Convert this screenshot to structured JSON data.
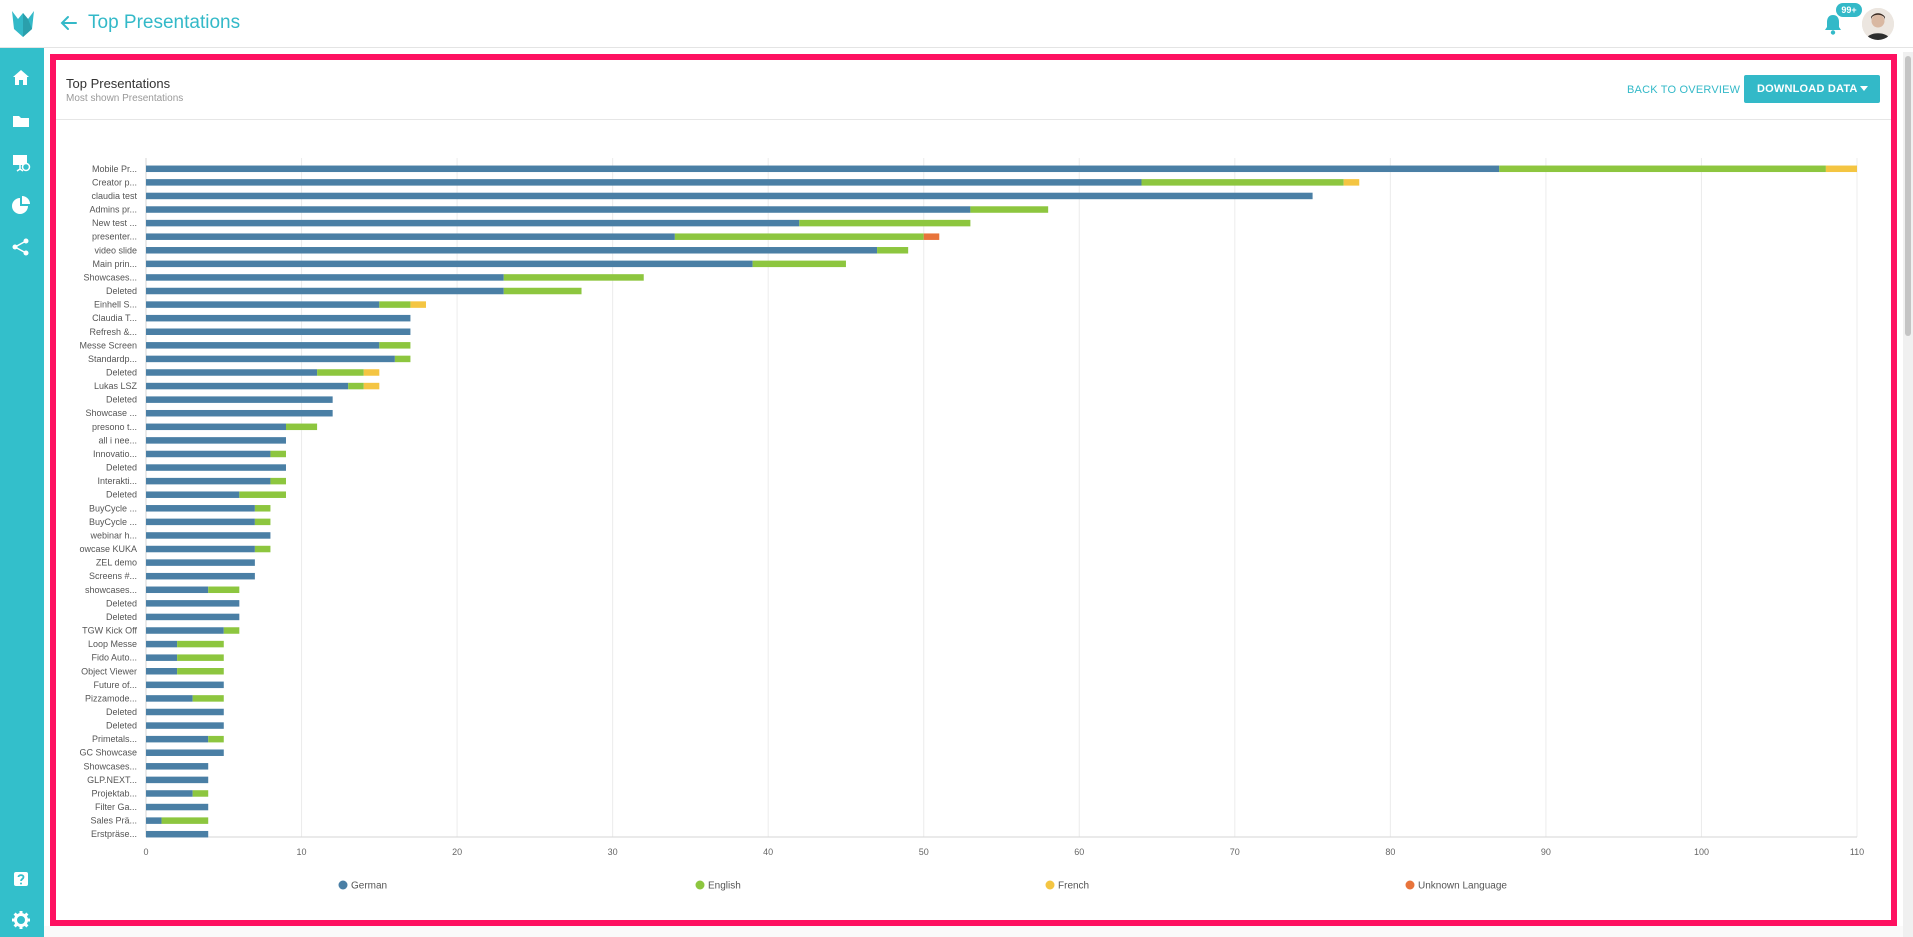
{
  "header": {
    "title": "Top Presentations",
    "notification_count": "99+"
  },
  "sidebar": {
    "items": [
      "home-icon",
      "folder-icon",
      "presentation-icon",
      "pie-chart-icon",
      "share-icon",
      "help-icon",
      "gear-icon"
    ]
  },
  "card": {
    "title": "Top Presentations",
    "subtitle": "Most shown Presentations",
    "back_label": "BACK TO OVERVIEW",
    "download_label": "DOWNLOAD DATA"
  },
  "colors": {
    "accent": "#33b9c8",
    "sidebar": "#33bfcb",
    "highlight": "#fe1161"
  },
  "chart_data": {
    "type": "bar",
    "orientation": "horizontal",
    "stacked": true,
    "xlim": [
      0,
      110
    ],
    "xticks": [
      0,
      10,
      20,
      30,
      40,
      50,
      60,
      70,
      80,
      90,
      100,
      110
    ],
    "grid": true,
    "legend_position": "bottom",
    "categories": [
      "Mobile Pr...",
      "Creator p...",
      "claudia test",
      "Admins pr...",
      "New test ...",
      "presenter...",
      "video slide",
      "Main prin...",
      "Showcases...",
      "Deleted",
      "Einhell S...",
      "Claudia T...",
      "Refresh &...",
      "Messe Screen",
      "Standardp...",
      "Deleted",
      "Lukas LSZ",
      "Deleted",
      "Showcase ...",
      "presono t...",
      "all i nee...",
      "Innovatio...",
      "Deleted",
      "Interakti...",
      "Deleted",
      "BuyCycle ...",
      "BuyCycle ...",
      "webinar h...",
      "owcase KUKA",
      "ZEL demo",
      "Screens #...",
      "showcases...",
      "Deleted",
      "Deleted",
      "TGW Kick Off",
      "Loop Messe",
      "Fido Auto...",
      "Object Viewer",
      "Future of...",
      "Pizzamode...",
      "Deleted",
      "Deleted",
      "Primetals...",
      "GC Showcase",
      "Showcases...",
      "GLP.NEXT...",
      "Projektab...",
      "Filter Ga...",
      "Sales Prä...",
      "Erstpräse..."
    ],
    "series": [
      {
        "name": "German",
        "color": "#4a7fa5",
        "values": [
          87,
          64,
          75,
          53,
          42,
          34,
          47,
          39,
          23,
          23,
          15,
          17,
          17,
          15,
          16,
          11,
          13,
          12,
          12,
          9,
          9,
          8,
          9,
          8,
          6,
          7,
          7,
          8,
          7,
          7,
          7,
          4,
          6,
          6,
          5,
          2,
          2,
          2,
          5,
          3,
          5,
          5,
          4,
          5,
          4,
          4,
          3,
          4,
          1,
          4
        ]
      },
      {
        "name": "English",
        "color": "#8dc63f",
        "values": [
          21,
          13,
          0,
          5,
          11,
          16,
          2,
          6,
          9,
          5,
          2,
          0,
          0,
          2,
          1,
          3,
          1,
          0,
          0,
          2,
          0,
          1,
          0,
          1,
          3,
          1,
          1,
          0,
          1,
          0,
          0,
          2,
          0,
          0,
          1,
          3,
          3,
          3,
          0,
          2,
          0,
          0,
          1,
          0,
          0,
          0,
          1,
          0,
          3,
          0
        ]
      },
      {
        "name": "French",
        "color": "#f4c542",
        "values": [
          2,
          1,
          0,
          0,
          0,
          0,
          0,
          0,
          0,
          0,
          1,
          0,
          0,
          0,
          0,
          1,
          1,
          0,
          0,
          0,
          0,
          0,
          0,
          0,
          0,
          0,
          0,
          0,
          0,
          0,
          0,
          0,
          0,
          0,
          0,
          0,
          0,
          0,
          0,
          0,
          0,
          0,
          0,
          0,
          0,
          0,
          0,
          0,
          0,
          0
        ]
      },
      {
        "name": "Unknown Language",
        "color": "#e8743b",
        "values": [
          0,
          0,
          0,
          0,
          0,
          1,
          0,
          0,
          0,
          0,
          0,
          0,
          0,
          0,
          0,
          0,
          0,
          0,
          0,
          0,
          0,
          0,
          0,
          0,
          0,
          0,
          0,
          0,
          0,
          0,
          0,
          0,
          0,
          0,
          0,
          0,
          0,
          0,
          0,
          0,
          0,
          0,
          0,
          0,
          0,
          0,
          0,
          0,
          0,
          0
        ]
      }
    ]
  }
}
